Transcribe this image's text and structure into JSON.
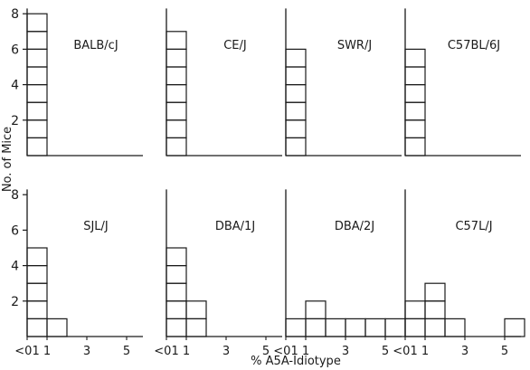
{
  "figure": {
    "ylabel": "No. of Mice",
    "xlabel": "% A5A-Idiotype"
  },
  "chart_data": [
    {
      "type": "bar",
      "title": "BALB/cJ",
      "categories": [
        "<01",
        "1",
        "2",
        "3",
        "4",
        "5"
      ],
      "values": [
        8,
        0,
        0,
        0,
        0,
        0
      ],
      "ylim": [
        0,
        8
      ],
      "yticks": [
        "2",
        "4",
        "6",
        "8"
      ],
      "xticks": []
    },
    {
      "type": "bar",
      "title": "CE/J",
      "categories": [
        "<01",
        "1",
        "2",
        "3",
        "4",
        "5"
      ],
      "values": [
        7,
        0,
        0,
        0,
        0,
        0
      ],
      "ylim": [
        0,
        8
      ],
      "yticks": [],
      "xticks": []
    },
    {
      "type": "bar",
      "title": "SWR/J",
      "categories": [
        "<01",
        "1",
        "2",
        "3",
        "4",
        "5"
      ],
      "values": [
        6,
        0,
        0,
        0,
        0,
        0
      ],
      "ylim": [
        0,
        8
      ],
      "yticks": [],
      "xticks": []
    },
    {
      "type": "bar",
      "title": "C57BL/6J",
      "categories": [
        "<01",
        "1",
        "2",
        "3",
        "4",
        "5"
      ],
      "values": [
        6,
        0,
        0,
        0,
        0,
        0
      ],
      "ylim": [
        0,
        8
      ],
      "yticks": [],
      "xticks": []
    },
    {
      "type": "bar",
      "title": "SJL/J",
      "categories": [
        "<01",
        "1",
        "2",
        "3",
        "4",
        "5"
      ],
      "values": [
        5,
        1,
        0,
        0,
        0,
        0
      ],
      "ylim": [
        0,
        8
      ],
      "yticks": [
        "2",
        "4",
        "6",
        "8"
      ],
      "xticks": [
        "<01",
        "1",
        "3",
        "5"
      ]
    },
    {
      "type": "bar",
      "title": "DBA/1J",
      "categories": [
        "<01",
        "1",
        "2",
        "3",
        "4",
        "5"
      ],
      "values": [
        5,
        2,
        0,
        0,
        0,
        0
      ],
      "ylim": [
        0,
        8
      ],
      "yticks": [],
      "xticks": [
        "<01",
        "1",
        "3",
        "5"
      ]
    },
    {
      "type": "bar",
      "title": "DBA/2J",
      "categories": [
        "<01",
        "1",
        "2",
        "3",
        "4",
        "5"
      ],
      "values": [
        1,
        2,
        1,
        1,
        1,
        1
      ],
      "ylim": [
        0,
        8
      ],
      "yticks": [],
      "xticks": [
        "<01",
        "1",
        "3",
        "5"
      ]
    },
    {
      "type": "bar",
      "title": "C57L/J",
      "categories": [
        "<01",
        "1",
        "2",
        "3",
        "4",
        "5"
      ],
      "values": [
        2,
        3,
        1,
        0,
        0,
        1
      ],
      "ylim": [
        0,
        8
      ],
      "yticks": [],
      "xticks": [
        "<01",
        "1",
        "3",
        "5"
      ]
    }
  ]
}
